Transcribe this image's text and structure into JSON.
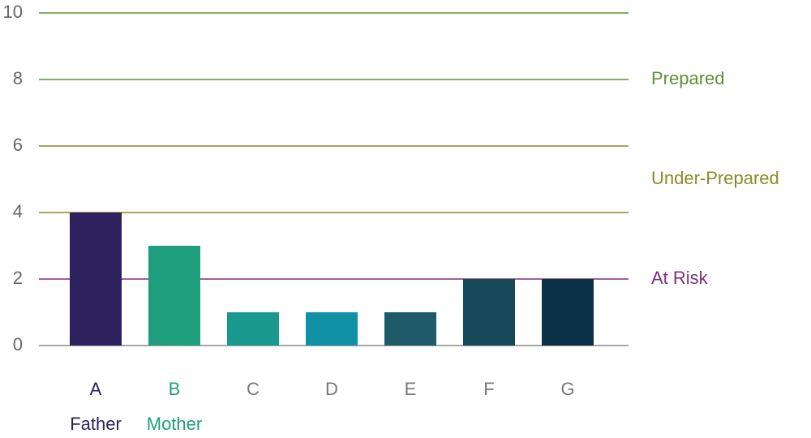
{
  "chart_data": {
    "type": "bar",
    "categories": [
      "A",
      "B",
      "C",
      "D",
      "E",
      "F",
      "G"
    ],
    "category_colors": [
      "#2e225e",
      "#1e9e7c",
      "#777777",
      "#777777",
      "#777777",
      "#777777",
      "#777777"
    ],
    "sublabels": [
      "Father",
      "Mother",
      null,
      null,
      null,
      null,
      null
    ],
    "values": [
      4,
      3,
      1,
      1,
      1,
      2,
      2
    ],
    "colors": [
      "#2e225e",
      "#1e9e7c",
      "#1a9a8f",
      "#1191a6",
      "#1f5a6b",
      "#154859",
      "#0c324a"
    ],
    "ylim": [
      0,
      10
    ],
    "yticks": [
      0,
      2,
      4,
      6,
      8,
      10
    ],
    "grid": true,
    "grid_colors": [
      "#888888",
      "#7b2d7e",
      "#8a8a24",
      "#8a8a24",
      "#5d9232",
      "#5d9232"
    ],
    "zones": [
      {
        "label": "Prepared",
        "y": 8,
        "color": "#5d9232"
      },
      {
        "label": "Under-Prepared",
        "y": 5,
        "color": "#8a8a24"
      },
      {
        "label": "At Risk",
        "y": 2,
        "color": "#7b2d7e"
      }
    ]
  }
}
